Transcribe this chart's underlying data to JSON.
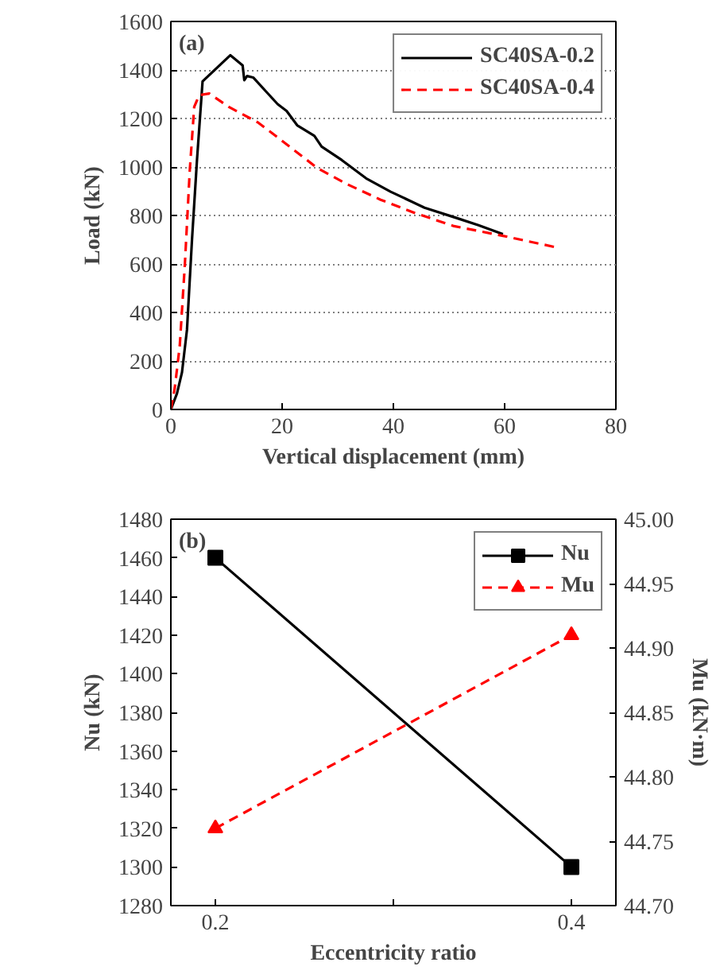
{
  "chart_data": [
    {
      "type": "line",
      "xlabel": "Vertical displacement (mm)",
      "ylabel": "Load (kN)",
      "annotations": [
        "(a)"
      ],
      "xlim": [
        0,
        80
      ],
      "ylim": [
        0,
        1600
      ],
      "xticks": [
        0,
        20,
        40,
        60,
        80
      ],
      "yticks": [
        0,
        200,
        400,
        600,
        800,
        1000,
        1200,
        1400,
        1600
      ],
      "grid": "y",
      "legend": "top right",
      "marker": "none",
      "series": [
        {
          "name": "SC40SA-0.2",
          "color": "#000000",
          "line_style": "solid",
          "x": [
            0,
            1.1,
            2.0,
            2.9,
            3.8,
            4.7,
            5.7,
            10.7,
            12.9,
            13.2,
            13.7,
            14.8,
            17.0,
            19.2,
            20.8,
            22.7,
            25.8,
            27.1,
            30.7,
            35.1,
            39.5,
            45.6,
            50.9,
            55.3,
            59.7
          ],
          "values": [
            0,
            66,
            153,
            329,
            700,
            1030,
            1353,
            1461,
            1419,
            1358,
            1375,
            1369,
            1314,
            1259,
            1231,
            1172,
            1128,
            1084,
            1029,
            953,
            898,
            832,
            793,
            760,
            723
          ]
        },
        {
          "name": "SC40SA-0.4",
          "color": "#ff0000",
          "line_style": "dashed",
          "x": [
            0,
            0.7,
            1.6,
            2.5,
            3.4,
            4.2,
            5.1,
            6.9,
            10.4,
            15.7,
            20.1,
            26.3,
            31.5,
            37.7,
            43.9,
            50.9,
            59.7,
            69.4
          ],
          "values": [
            0,
            88,
            263,
            591,
            986,
            1248,
            1296,
            1303,
            1248,
            1183,
            1106,
            996,
            931,
            865,
            810,
            756,
            716,
            668
          ]
        }
      ]
    },
    {
      "type": "line",
      "xlabel": "Eccentricity ratio",
      "ylabel": "Nu (kN)",
      "y2label": "Mu (kN·m)",
      "annotations": [
        "(b)"
      ],
      "xlim": [
        0.175,
        0.425
      ],
      "xticks": [
        0.2,
        {
          "value": 0.3,
          "label": null
        },
        0.4
      ],
      "ylim": [
        1280,
        1480
      ],
      "yticks": [
        1280,
        1300,
        1320,
        1340,
        1360,
        1380,
        1400,
        1420,
        1440,
        1460,
        1480
      ],
      "y2lim": [
        44.7,
        45.0
      ],
      "y2ticks": [
        {
          "value": 44.7,
          "label": "44.70"
        },
        44.75,
        {
          "value": 44.8,
          "label": "44.80"
        },
        44.85,
        {
          "value": 44.9,
          "label": "44.90"
        },
        44.95,
        {
          "value": 45.0,
          "label": "45.00"
        }
      ],
      "grid": false,
      "legend": "top right",
      "series": [
        {
          "name": "Nu",
          "color": "#000000",
          "marker": "square",
          "line_style": "solid",
          "x": [
            0.2,
            0.4
          ],
          "values": [
            1460,
            1300
          ]
        },
        {
          "name": "Mu",
          "color": "#ff0000",
          "marker": "triangle",
          "line_style": "dashed",
          "axis": "y2",
          "x": [
            0.2,
            0.4
          ],
          "values": [
            44.76,
            44.91
          ]
        }
      ]
    }
  ]
}
